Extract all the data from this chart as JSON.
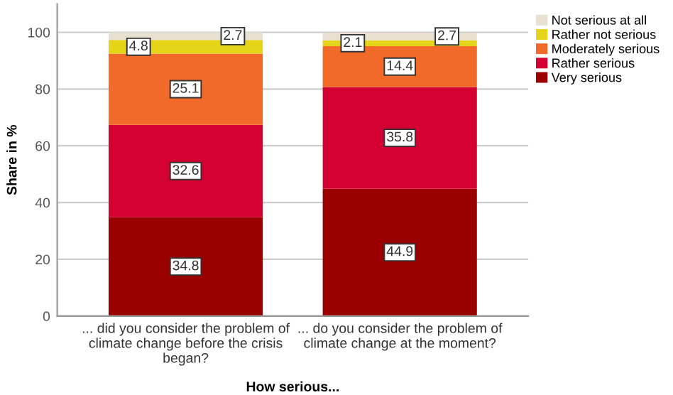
{
  "chart_data": {
    "type": "bar",
    "stacked": true,
    "xlabel": "How serious...",
    "ylabel": "Share in %",
    "categories": [
      "... did you consider the problem of\nclimate change before the crisis\nbegan?",
      "... do you consider the problem of\nclimate change at the moment?"
    ],
    "series": [
      {
        "name": "Very serious",
        "color": "#9b0000",
        "values": [
          34.8,
          44.9
        ]
      },
      {
        "name": "Rather serious",
        "color": "#d50032",
        "values": [
          32.6,
          35.8
        ]
      },
      {
        "name": "Moderately serious",
        "color": "#f26a2a",
        "values": [
          25.1,
          14.4
        ]
      },
      {
        "name": "Rather not serious",
        "color": "#e6d419",
        "values": [
          4.8,
          2.1
        ]
      },
      {
        "name": "Not serious at all",
        "color": "#e8e0d0",
        "values": [
          2.7,
          2.7
        ]
      }
    ],
    "ylim": [
      0,
      110
    ],
    "yticks": [
      0,
      20,
      40,
      60,
      80,
      100
    ],
    "grid": "y",
    "legend": "top right",
    "data_labels": true
  }
}
